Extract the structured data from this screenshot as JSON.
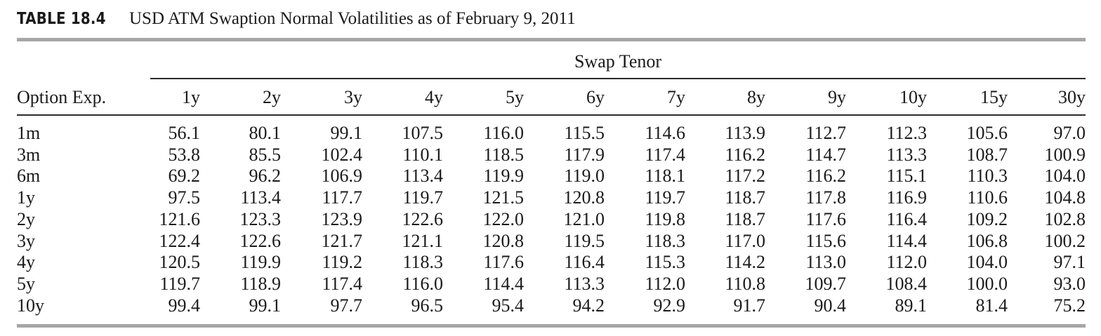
{
  "caption": {
    "label": "TABLE 18.4",
    "title": "USD ATM Swaption Normal Volatilities as of February 9, 2011"
  },
  "table": {
    "spanner": "Swap Tenor",
    "row_header": "Option Exp.",
    "columns": [
      "1y",
      "2y",
      "3y",
      "4y",
      "5y",
      "6y",
      "7y",
      "8y",
      "9y",
      "10y",
      "15y",
      "30y"
    ],
    "rows": [
      {
        "label": "1m",
        "values": [
          "56.1",
          "80.1",
          "99.1",
          "107.5",
          "116.0",
          "115.5",
          "114.6",
          "113.9",
          "112.7",
          "112.3",
          "105.6",
          "97.0"
        ]
      },
      {
        "label": "3m",
        "values": [
          "53.8",
          "85.5",
          "102.4",
          "110.1",
          "118.5",
          "117.9",
          "117.4",
          "116.2",
          "114.7",
          "113.3",
          "108.7",
          "100.9"
        ]
      },
      {
        "label": "6m",
        "values": [
          "69.2",
          "96.2",
          "106.9",
          "113.4",
          "119.9",
          "119.0",
          "118.1",
          "117.2",
          "116.2",
          "115.1",
          "110.3",
          "104.0"
        ]
      },
      {
        "label": "1y",
        "values": [
          "97.5",
          "113.4",
          "117.7",
          "119.7",
          "121.5",
          "120.8",
          "119.7",
          "118.7",
          "117.8",
          "116.9",
          "110.6",
          "104.8"
        ]
      },
      {
        "label": "2y",
        "values": [
          "121.6",
          "123.3",
          "123.9",
          "122.6",
          "122.0",
          "121.0",
          "119.8",
          "118.7",
          "117.6",
          "116.4",
          "109.2",
          "102.8"
        ]
      },
      {
        "label": "3y",
        "values": [
          "122.4",
          "122.6",
          "121.7",
          "121.1",
          "120.8",
          "119.5",
          "118.3",
          "117.0",
          "115.6",
          "114.4",
          "106.8",
          "100.2"
        ]
      },
      {
        "label": "4y",
        "values": [
          "120.5",
          "119.9",
          "119.2",
          "118.3",
          "117.6",
          "116.4",
          "115.3",
          "114.2",
          "113.0",
          "112.0",
          "104.0",
          "97.1"
        ]
      },
      {
        "label": "5y",
        "values": [
          "119.7",
          "118.9",
          "117.4",
          "116.0",
          "114.4",
          "113.3",
          "112.0",
          "110.8",
          "109.7",
          "108.4",
          "100.0",
          "93.0"
        ]
      },
      {
        "label": "10y",
        "values": [
          "99.4",
          "99.1",
          "97.7",
          "96.5",
          "95.4",
          "94.2",
          "92.9",
          "91.7",
          "90.4",
          "89.1",
          "81.4",
          "75.2"
        ]
      }
    ]
  }
}
